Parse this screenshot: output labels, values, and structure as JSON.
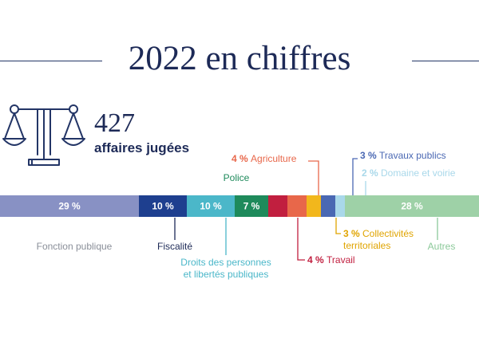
{
  "header": {
    "title": "2022 en chiffres"
  },
  "stats": {
    "count": "427",
    "count_label": "affaires jugées"
  },
  "icons": {
    "scale": "scale-of-justice-icon"
  },
  "colors": {
    "navy": "#1d2a57",
    "muted": "#8a8f99"
  },
  "chart_data": {
    "type": "bar",
    "orientation": "horizontal-stacked",
    "title": "2022 en chiffres",
    "unit": "%",
    "categories": [
      "Fonction publique",
      "Fiscalité",
      "Droits des personnes et libertés publiques",
      "Police",
      "Travail",
      "Agriculture",
      "Collectivités territoriales",
      "Travaux publics",
      "Domaine et voirie",
      "Autres"
    ],
    "values": [
      29,
      10,
      10,
      7,
      4,
      4,
      3,
      3,
      2,
      28
    ],
    "value_labels": [
      "29 %",
      "10 %",
      "10 %",
      "7 %",
      "4 %",
      "4 %",
      "3 %",
      "3 %",
      "2 %",
      "28 %"
    ],
    "category_label_lines": [
      [
        "Fonction publique"
      ],
      [
        "Fiscalité"
      ],
      [
        "Droits des personnes",
        "et libertés publiques"
      ],
      [
        "Police"
      ],
      [
        "Travail"
      ],
      [
        "Agriculture"
      ],
      [
        "Collectivités",
        "territoriales"
      ],
      [
        "Travaux publics"
      ],
      [
        "Domaine et voirie"
      ],
      [
        "Autres"
      ]
    ],
    "colors": [
      "#8891c4",
      "#1e3f8f",
      "#4bb7c9",
      "#1e8a5b",
      "#c11f3f",
      "#e8674a",
      "#f2b71c",
      "#4a68b3",
      "#a9d8ea",
      "#9ed1a7"
    ],
    "label_colors": [
      "#8a8f99",
      "#1d2a57",
      "#4bb7c9",
      "#1e8a5b",
      "#c11f3f",
      "#e8674a",
      "#e0a400",
      "#4a68b3",
      "#a9d8ea",
      "#8cc99a"
    ],
    "values_inside_bar": [
      true,
      true,
      true,
      true,
      false,
      false,
      false,
      false,
      false,
      true
    ],
    "callout_position": [
      "below",
      "below",
      "below",
      "above",
      "below",
      "above",
      "below",
      "above",
      "above",
      "below"
    ]
  }
}
